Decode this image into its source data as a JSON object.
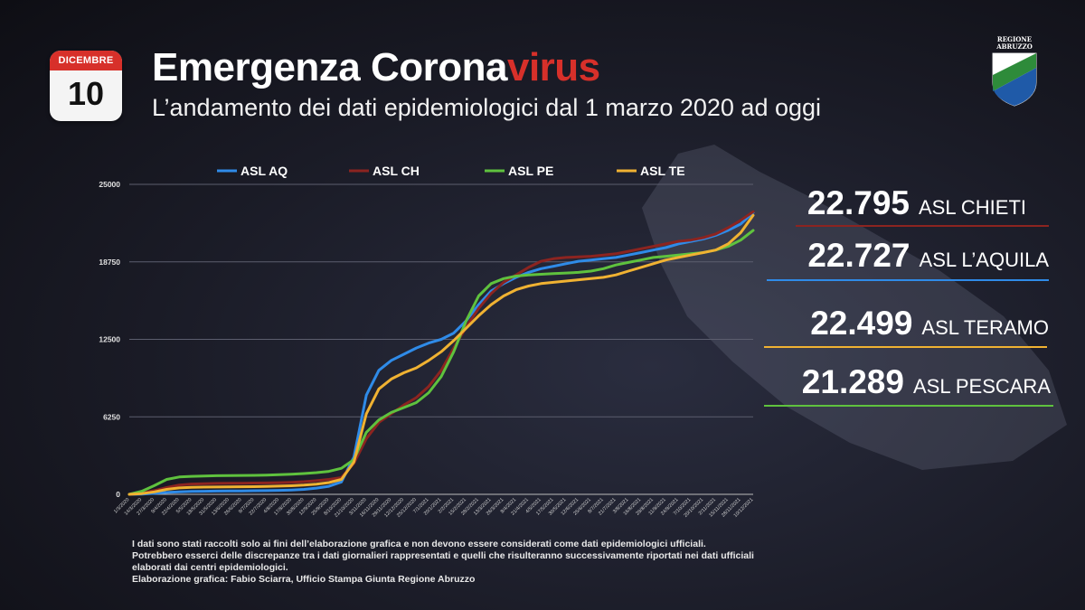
{
  "calendar": {
    "month": "DICEMBRE",
    "day": "10"
  },
  "header": {
    "title_main": "Emergenza Corona",
    "title_accent": "virus",
    "subtitle": "L’andamento dei dati epidemiologici dal 1 marzo 2020 ad oggi"
  },
  "logo": {
    "line1": "REGIONE",
    "line2": "ABRUZZO"
  },
  "colors": {
    "accent": "#d7302a",
    "asl_aq": "#2f8be8",
    "asl_ch": "#8c2420",
    "asl_pe": "#5fc23e",
    "asl_te": "#f0b232"
  },
  "totals": [
    {
      "value": "22.795",
      "label": "ASL CHIETI",
      "color": "#8c2420"
    },
    {
      "value": "22.727",
      "label": "ASL L’AQUILA",
      "color": "#2f8be8"
    },
    {
      "value": "22.499",
      "label": "ASL TERAMO",
      "color": "#f0b232"
    },
    {
      "value": "21.289",
      "label": "ASL PESCARA",
      "color": "#5fc23e"
    }
  ],
  "chart_data": {
    "type": "line",
    "legend_position": "top",
    "grid": true,
    "ylim": [
      0,
      25000
    ],
    "yticks": [
      "0",
      "6250",
      "12500",
      "18750",
      "25000"
    ],
    "x": [
      "1/3/2020",
      "14/3/2020",
      "27/3/2020",
      "9/4/2020",
      "22/4/2020",
      "5/5/2020",
      "18/5/2020",
      "31/5/2020",
      "13/6/2020",
      "26/6/2020",
      "9/7/2020",
      "22/7/2020",
      "4/8/2020",
      "17/8/2020",
      "30/8/2020",
      "12/9/2020",
      "25/9/2020",
      "8/10/2020",
      "21/10/2020",
      "3/11/2020",
      "16/11/2020",
      "29/11/2020",
      "12/12/2020",
      "25/12/2020",
      "7/1/2021",
      "20/1/2021",
      "2/2/2021",
      "15/2/2021",
      "28/2/2021",
      "13/3/2021",
      "26/3/2021",
      "8/4/2021",
      "21/4/2021",
      "4/5/2021",
      "17/5/2021",
      "30/5/2021",
      "12/6/2021",
      "25/6/2021",
      "8/7/2021",
      "21/7/2021",
      "3/8/2021",
      "16/8/2021",
      "29/8/2021",
      "11/9/2021",
      "24/9/2021",
      "7/10/2021",
      "20/10/2021",
      "2/11/2021",
      "15/11/2021",
      "28/11/2021",
      "10/12/2021"
    ],
    "xtick_labels": [
      "1/3/2020",
      "14/3/2020",
      "27/3/2020",
      "9/4/2020",
      "22/4/2020",
      "5/5/2020",
      "18/5/2020",
      "31/5/2020",
      "13/6/2020",
      "26/6/2020",
      "9/7/2020",
      "22/7/2020",
      "4/8/2020",
      "17/8/2020",
      "30/8/2020",
      "12/9/2020",
      "25/9/2020",
      "8/10/2020",
      "21/10/2020",
      "3/11/2020",
      "16/11/2020",
      "29/11/2020",
      "12/12/2020",
      "25/12/2020",
      "7/1/2021",
      "20/1/2021",
      "2/2/2021",
      "15/2/2021",
      "28/2/2021",
      "13/3/2021",
      "26/3/2021",
      "8/4/2021",
      "21/4/2021",
      "4/5/2021",
      "17/5/2021",
      "30/5/2021",
      "12/6/2021",
      "25/6/2021",
      "8/7/2021",
      "21/7/2021",
      "3/8/2021",
      "16/8/2021",
      "29/8/2021",
      "11/9/2021",
      "24/9/2021",
      "7/10/2021",
      "20/10/2021",
      "2/11/2021",
      "15/11/2021",
      "28/11/2021",
      "10/12/2021"
    ],
    "series": [
      {
        "name": "ASL AQ",
        "color": "#2f8be8",
        "values": [
          0,
          20,
          80,
          150,
          200,
          230,
          250,
          260,
          270,
          280,
          290,
          300,
          320,
          350,
          400,
          500,
          650,
          1000,
          3000,
          8000,
          10000,
          10800,
          11300,
          11800,
          12200,
          12500,
          13000,
          14000,
          15300,
          16400,
          17000,
          17500,
          17900,
          18200,
          18400,
          18600,
          18800,
          18900,
          19000,
          19100,
          19300,
          19500,
          19700,
          19900,
          20200,
          20400,
          20600,
          20900,
          21300,
          21800,
          22727
        ]
      },
      {
        "name": "ASL CH",
        "color": "#8c2420",
        "values": [
          0,
          100,
          300,
          550,
          750,
          830,
          860,
          880,
          890,
          900,
          910,
          920,
          940,
          970,
          1020,
          1100,
          1200,
          1350,
          2500,
          4500,
          5800,
          6500,
          7200,
          7800,
          8700,
          10000,
          11800,
          13500,
          15000,
          16200,
          17100,
          17700,
          18300,
          18800,
          19000,
          19100,
          19150,
          19200,
          19300,
          19400,
          19600,
          19800,
          20000,
          20200,
          20400,
          20500,
          20700,
          21000,
          21500,
          22100,
          22795
        ]
      },
      {
        "name": "ASL PE",
        "color": "#5fc23e",
        "values": [
          0,
          250,
          700,
          1200,
          1400,
          1450,
          1480,
          1500,
          1510,
          1520,
          1530,
          1550,
          1580,
          1620,
          1680,
          1750,
          1850,
          2100,
          2800,
          5000,
          6000,
          6600,
          7000,
          7400,
          8200,
          9500,
          11500,
          14000,
          16000,
          17000,
          17400,
          17600,
          17700,
          17750,
          17800,
          17850,
          17900,
          18000,
          18200,
          18500,
          18700,
          18900,
          19100,
          19200,
          19300,
          19400,
          19500,
          19700,
          20000,
          20500,
          21289
        ]
      },
      {
        "name": "ASL TE",
        "color": "#f0b232",
        "values": [
          0,
          60,
          200,
          400,
          520,
          560,
          580,
          590,
          600,
          610,
          620,
          640,
          660,
          690,
          740,
          820,
          950,
          1200,
          2600,
          6500,
          8500,
          9300,
          9800,
          10200,
          10800,
          11500,
          12400,
          13400,
          14400,
          15300,
          16000,
          16500,
          16800,
          17000,
          17100,
          17200,
          17300,
          17400,
          17500,
          17700,
          18000,
          18300,
          18600,
          18900,
          19100,
          19300,
          19500,
          19700,
          20200,
          21100,
          22499
        ]
      }
    ]
  },
  "notes": [
    "I dati sono stati raccolti solo ai fini dell’elaborazione grafica e non devono essere considerati come dati epidemiologici ufficiali.",
    "Potrebbero esserci delle discrepanze tra i dati giornalieri rappresentati e quelli che risulteranno successivamente riportati nei dati ufficiali",
    "elaborati dai centri epidemiologici.",
    "Elaborazione grafica: Fabio Sciarra, Ufficio Stampa Giunta Regione Abruzzo"
  ]
}
